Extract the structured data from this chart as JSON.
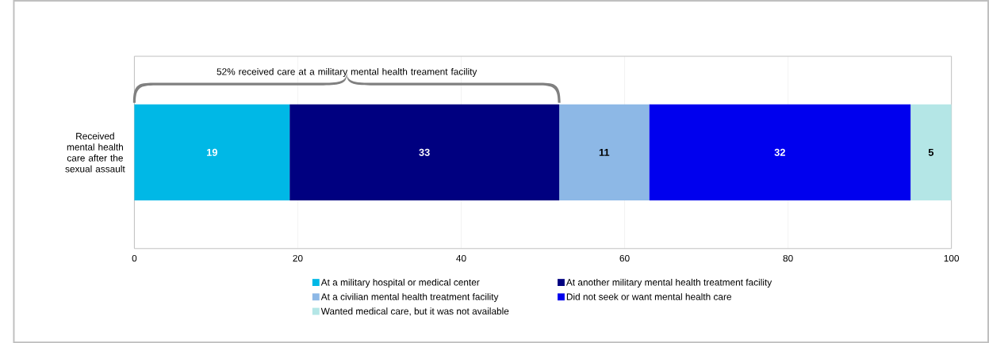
{
  "chart_data": {
    "type": "bar",
    "orientation": "horizontal",
    "stacked": true,
    "categories": [
      "Received mental health care after the sexual assault"
    ],
    "series": [
      {
        "name": "At a military hospital or medical center",
        "color": "#00b8e6",
        "values": [
          19
        ]
      },
      {
        "name": "At another military mental health treatment facility",
        "color": "#000080",
        "values": [
          33
        ]
      },
      {
        "name": "At a civilian mental health treatment facility",
        "color": "#8db8e6",
        "values": [
          11
        ]
      },
      {
        "name": "Did not seek or want mental health care",
        "color": "#0000ee",
        "values": [
          32
        ]
      },
      {
        "name": "Wanted medical care, but it was not available",
        "color": "#b4e6e6",
        "values": [
          5
        ]
      }
    ],
    "xlim": [
      0,
      100
    ],
    "xticks": [
      0,
      20,
      40,
      60,
      80,
      100
    ],
    "grid": "x",
    "legend": "bottom",
    "data_labels": true,
    "annotations": [
      "52% received care at a military mental health treament facility"
    ]
  }
}
